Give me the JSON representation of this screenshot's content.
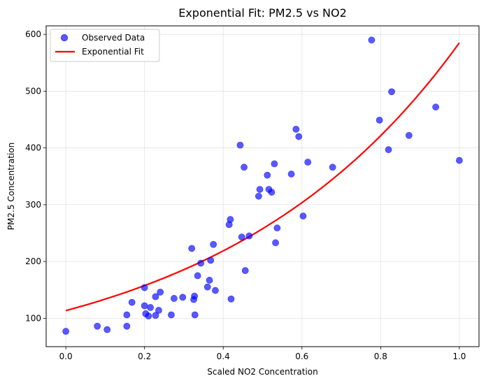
{
  "chart_data": {
    "type": "scatter",
    "title": "Exponential Fit: PM2.5 vs NO2",
    "xlabel": "Scaled NO2 Concentration",
    "ylabel": "PM2.5 Concentration",
    "xlim": [
      -0.05,
      1.05
    ],
    "ylim": [
      50,
      615
    ],
    "xticks": [
      0.0,
      0.2,
      0.4,
      0.6,
      0.8,
      1.0
    ],
    "xtick_labels": [
      "0.0",
      "0.2",
      "0.4",
      "0.6",
      "0.8",
      "1.0"
    ],
    "yticks": [
      100,
      200,
      300,
      400,
      500,
      600
    ],
    "ytick_labels": [
      "100",
      "200",
      "300",
      "400",
      "500",
      "600"
    ],
    "grid": true,
    "legend": {
      "position": "top-left",
      "entries": [
        {
          "label": "Observed Data",
          "marker": "circle",
          "color": "#4040e6"
        },
        {
          "label": "Exponential Fit",
          "marker": "line",
          "color": "#ff0000"
        }
      ]
    },
    "series": [
      {
        "name": "Observed Data",
        "kind": "scatter",
        "color": "#0000ff",
        "opacity": 0.65,
        "points": [
          [
            0.0,
            77
          ],
          [
            0.08,
            86
          ],
          [
            0.105,
            80
          ],
          [
            0.155,
            86
          ],
          [
            0.155,
            106
          ],
          [
            0.168,
            128
          ],
          [
            0.2,
            154
          ],
          [
            0.2,
            122
          ],
          [
            0.203,
            108
          ],
          [
            0.21,
            104
          ],
          [
            0.215,
            119
          ],
          [
            0.228,
            138
          ],
          [
            0.228,
            105
          ],
          [
            0.236,
            114
          ],
          [
            0.24,
            146
          ],
          [
            0.268,
            106
          ],
          [
            0.275,
            135
          ],
          [
            0.297,
            137
          ],
          [
            0.32,
            223
          ],
          [
            0.325,
            133
          ],
          [
            0.327,
            139
          ],
          [
            0.328,
            106
          ],
          [
            0.335,
            175
          ],
          [
            0.343,
            197
          ],
          [
            0.36,
            155
          ],
          [
            0.365,
            167
          ],
          [
            0.368,
            202
          ],
          [
            0.375,
            230
          ],
          [
            0.38,
            149
          ],
          [
            0.415,
            265
          ],
          [
            0.418,
            274
          ],
          [
            0.42,
            134
          ],
          [
            0.443,
            405
          ],
          [
            0.447,
            243
          ],
          [
            0.453,
            366
          ],
          [
            0.456,
            184
          ],
          [
            0.466,
            245
          ],
          [
            0.49,
            315
          ],
          [
            0.493,
            327
          ],
          [
            0.512,
            352
          ],
          [
            0.516,
            327
          ],
          [
            0.523,
            322
          ],
          [
            0.53,
            372
          ],
          [
            0.533,
            233
          ],
          [
            0.537,
            259
          ],
          [
            0.573,
            354
          ],
          [
            0.585,
            433
          ],
          [
            0.592,
            420
          ],
          [
            0.603,
            280
          ],
          [
            0.615,
            375
          ],
          [
            0.678,
            366
          ],
          [
            0.777,
            590
          ],
          [
            0.797,
            449
          ],
          [
            0.82,
            397
          ],
          [
            0.828,
            499
          ],
          [
            0.872,
            422
          ],
          [
            0.94,
            472
          ],
          [
            1.0,
            378
          ]
        ]
      },
      {
        "name": "Exponential Fit",
        "kind": "line",
        "color": "#ff0000",
        "a": 113.5,
        "b": 1.64
      }
    ]
  }
}
